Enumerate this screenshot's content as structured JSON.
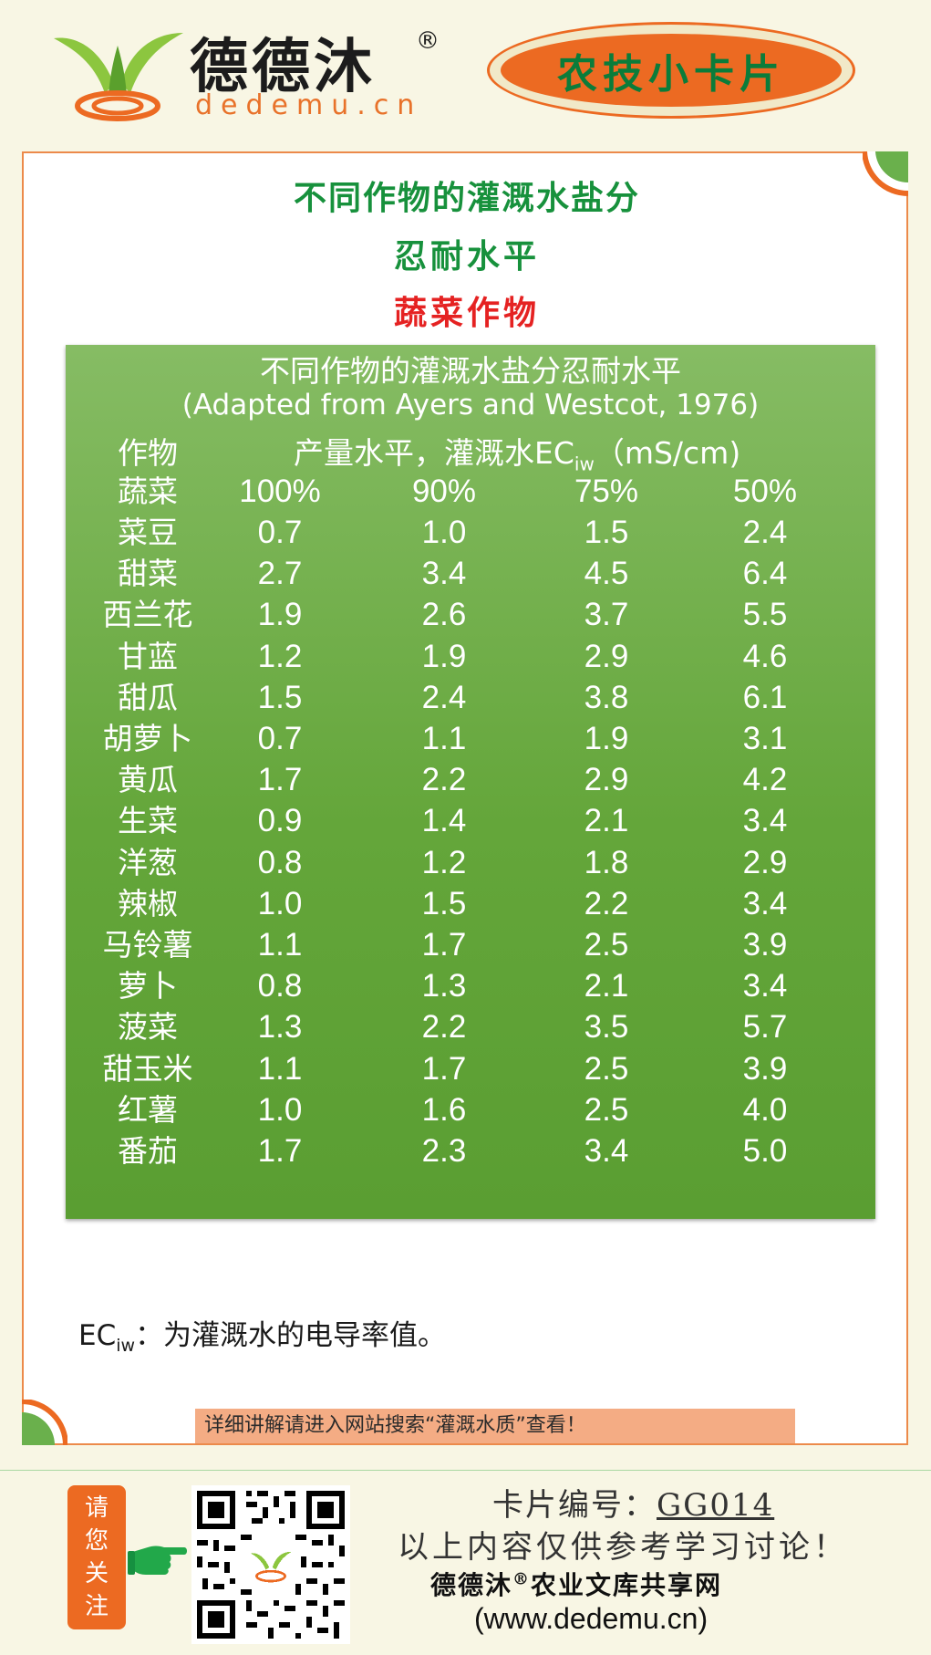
{
  "header": {
    "brand_name": "德德沐",
    "registered_mark": "®",
    "brand_url": "dedemu.cn",
    "badge_text": "农技小卡片",
    "logo_icon": "sprout-logo-icon"
  },
  "card": {
    "title_line1": "不同作物的灌溉水盐分",
    "title_line2": "忍耐水平",
    "title_line3": "蔬菜作物"
  },
  "table": {
    "title": "不同作物的灌溉水盐分忍耐水平",
    "source": "(Adapted from Ayers and Westcot, 1976)",
    "crop_header": "作物",
    "yield_header_prefix": "产量水平，灌溉水EC",
    "yield_header_sub": "iw",
    "yield_header_unit": "（mS/cm)",
    "category_label": "蔬菜",
    "levels": [
      "100%",
      "90%",
      "75%",
      "50%"
    ],
    "rows": [
      {
        "crop": "菜豆",
        "values": [
          "0.7",
          "1.0",
          "1.5",
          "2.4"
        ]
      },
      {
        "crop": "甜菜",
        "values": [
          "2.7",
          "3.4",
          "4.5",
          "6.4"
        ]
      },
      {
        "crop": "西兰花",
        "values": [
          "1.9",
          "2.6",
          "3.7",
          "5.5"
        ]
      },
      {
        "crop": "甘蓝",
        "values": [
          "1.2",
          "1.9",
          "2.9",
          "4.6"
        ]
      },
      {
        "crop": "甜瓜",
        "values": [
          "1.5",
          "2.4",
          "3.8",
          "6.1"
        ]
      },
      {
        "crop": "胡萝卜",
        "values": [
          "0.7",
          "1.1",
          "1.9",
          "3.1"
        ]
      },
      {
        "crop": "黄瓜",
        "values": [
          "1.7",
          "2.2",
          "2.9",
          "4.2"
        ]
      },
      {
        "crop": "生菜",
        "values": [
          "0.9",
          "1.4",
          "2.1",
          "3.4"
        ]
      },
      {
        "crop": "洋葱",
        "values": [
          "0.8",
          "1.2",
          "1.8",
          "2.9"
        ]
      },
      {
        "crop": "辣椒",
        "values": [
          "1.0",
          "1.5",
          "2.2",
          "3.4"
        ]
      },
      {
        "crop": "马铃薯",
        "values": [
          "1.1",
          "1.7",
          "2.5",
          "3.9"
        ]
      },
      {
        "crop": "萝卜",
        "values": [
          "0.8",
          "1.3",
          "2.1",
          "3.4"
        ]
      },
      {
        "crop": "菠菜",
        "values": [
          "1.3",
          "2.2",
          "3.5",
          "5.7"
        ]
      },
      {
        "crop": "甜玉米",
        "values": [
          "1.1",
          "1.7",
          "2.5",
          "3.9"
        ]
      },
      {
        "crop": "红薯",
        "values": [
          "1.0",
          "1.6",
          "2.5",
          "4.0"
        ]
      },
      {
        "crop": "番茄",
        "values": [
          "1.7",
          "2.3",
          "3.4",
          "5.0"
        ]
      }
    ]
  },
  "note": {
    "ec_prefix": "EC",
    "ec_sub": "iw",
    "text": "：为灌溉水的电导率值。"
  },
  "search_hint": "详细讲解请进入网站搜索“灌溉水质”查看！",
  "footer": {
    "follow_chars": [
      "请",
      "您",
      "关",
      "注"
    ],
    "card_no_label": "卡片编号：",
    "card_no": "GG014",
    "disclaimer": "以上内容仅供参考学习讨论！",
    "library_name_a": "德德沐",
    "library_reg": "®",
    "library_name_b": "农业文库共享网",
    "site": "(www.dedemu.cn)",
    "icons": [
      "pointing-hand-icon",
      "qr-code"
    ]
  },
  "colors": {
    "page_bg": "#f8f6e4",
    "orange": "#ec6a22",
    "title_green": "#17913c",
    "title_red": "#e52222",
    "panel_green": "#6aaa40"
  }
}
